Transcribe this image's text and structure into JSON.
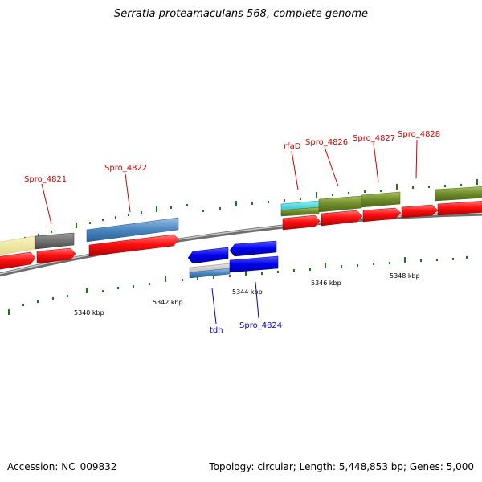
{
  "title": "Serratia proteamaculans 568, complete genome",
  "footer": {
    "accession": "Accession: NC_009832",
    "topology": "Topology: circular; Length: 5,448,853 bp; Genes: 5,000"
  },
  "colors": {
    "backbone": "#8a8a8a",
    "cds": "#ff0000",
    "forward_label": "#cc0000",
    "reverse_label": "#0000cc",
    "ticks": "#1a7a1a"
  },
  "coordinate_labels": [
    "5340 kbp",
    "5342 kbp",
    "5344 kbp",
    "5346 kbp",
    "5348 kbp"
  ],
  "gene_labels": {
    "spro_4821": "Spro_4821",
    "spro_4822": "Spro_4822",
    "rfad": "rfaD",
    "spro_4826": "Spro_4826",
    "spro_4827": "Spro_4827",
    "spro_4828": "Spro_4828",
    "tdh": "tdh",
    "spro_4824": "Spro_4824"
  }
}
